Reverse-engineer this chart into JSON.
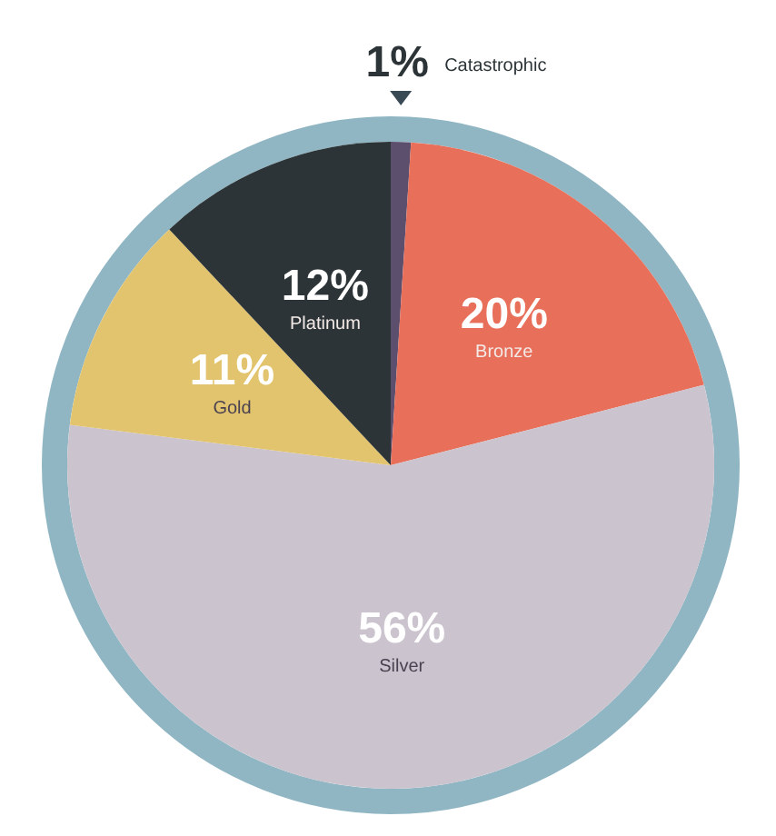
{
  "chart_data": {
    "type": "pie",
    "categories": [
      "Catastrophic",
      "Bronze",
      "Silver",
      "Gold",
      "Platinum"
    ],
    "values": [
      1,
      20,
      56,
      11,
      12
    ],
    "colors": [
      "#5c4f6e",
      "#e8705a",
      "#cbc3cd",
      "#e3c46e",
      "#2c3437"
    ],
    "value_labels": [
      "1%",
      "20%",
      "56%",
      "11%",
      "12%"
    ]
  }
}
